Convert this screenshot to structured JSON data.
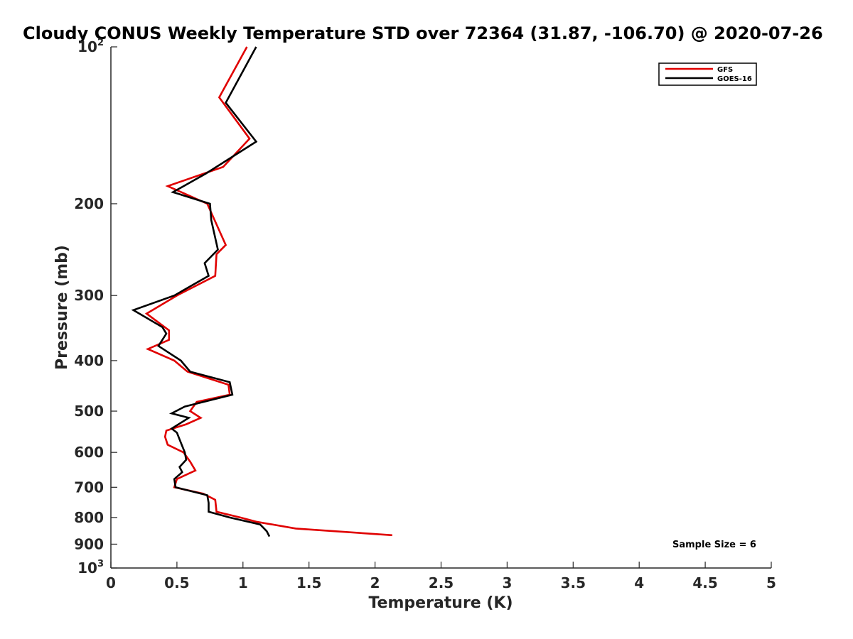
{
  "chart_data": {
    "type": "line",
    "title": "Cloudy CONUS Weekly Temperature STD over 72364 (31.87, -106.70) @ 2020-07-26",
    "xlabel": "Temperature (K)",
    "ylabel": "Pressure (mb)",
    "xlim": [
      0,
      5
    ],
    "ylim": [
      100,
      1000
    ],
    "y_scale": "log",
    "y_reversed": true,
    "x_ticks": [
      "0",
      "0.5",
      "1",
      "1.5",
      "2",
      "2.5",
      "3",
      "3.5",
      "4",
      "4.5",
      "5"
    ],
    "x_tick_values": [
      0,
      0.5,
      1,
      1.5,
      2,
      2.5,
      3,
      3.5,
      4,
      4.5,
      5
    ],
    "y_tick_values": [
      100,
      200,
      300,
      400,
      500,
      600,
      700,
      800,
      900,
      1000
    ],
    "y_tick_labels": [
      {
        "base": "10",
        "exp": "2"
      },
      {
        "base": "200",
        "exp": ""
      },
      {
        "base": "300",
        "exp": ""
      },
      {
        "base": "400",
        "exp": ""
      },
      {
        "base": "500",
        "exp": ""
      },
      {
        "base": "600",
        "exp": ""
      },
      {
        "base": "700",
        "exp": ""
      },
      {
        "base": "800",
        "exp": ""
      },
      {
        "base": "900",
        "exp": ""
      },
      {
        "base": "10",
        "exp": "3"
      }
    ],
    "grid": false,
    "legend_position": "top-right",
    "annotation": "Sample Size = 6",
    "series": [
      {
        "name": "GFS",
        "color": "#e00000",
        "points": [
          [
            1.03,
            100
          ],
          [
            0.82,
            125
          ],
          [
            1.05,
            150
          ],
          [
            0.85,
            170
          ],
          [
            0.43,
            185
          ],
          [
            0.73,
            200
          ],
          [
            0.87,
            240
          ],
          [
            0.8,
            250
          ],
          [
            0.79,
            275
          ],
          [
            0.5,
            300
          ],
          [
            0.27,
            325
          ],
          [
            0.44,
            350
          ],
          [
            0.44,
            365
          ],
          [
            0.28,
            380
          ],
          [
            0.48,
            400
          ],
          [
            0.58,
            420
          ],
          [
            0.89,
            445
          ],
          [
            0.9,
            465
          ],
          [
            0.65,
            480
          ],
          [
            0.6,
            500
          ],
          [
            0.68,
            515
          ],
          [
            0.57,
            530
          ],
          [
            0.42,
            545
          ],
          [
            0.41,
            560
          ],
          [
            0.43,
            580
          ],
          [
            0.55,
            600
          ],
          [
            0.6,
            625
          ],
          [
            0.64,
            650
          ],
          [
            0.5,
            675
          ],
          [
            0.48,
            700
          ],
          [
            0.7,
            720
          ],
          [
            0.79,
            740
          ],
          [
            0.8,
            780
          ],
          [
            0.98,
            800
          ],
          [
            1.1,
            815
          ],
          [
            1.4,
            840
          ],
          [
            2.13,
            865
          ]
        ]
      },
      {
        "name": "GOES-16",
        "color": "#000000",
        "points": [
          [
            1.1,
            100
          ],
          [
            0.87,
            128
          ],
          [
            1.1,
            152
          ],
          [
            0.72,
            175
          ],
          [
            0.47,
            190
          ],
          [
            0.75,
            200
          ],
          [
            0.76,
            215
          ],
          [
            0.81,
            245
          ],
          [
            0.71,
            260
          ],
          [
            0.74,
            275
          ],
          [
            0.48,
            300
          ],
          [
            0.17,
            320
          ],
          [
            0.39,
            345
          ],
          [
            0.42,
            355
          ],
          [
            0.36,
            375
          ],
          [
            0.53,
            400
          ],
          [
            0.6,
            420
          ],
          [
            0.9,
            440
          ],
          [
            0.92,
            465
          ],
          [
            0.56,
            490
          ],
          [
            0.46,
            505
          ],
          [
            0.59,
            515
          ],
          [
            0.46,
            540
          ],
          [
            0.5,
            550
          ],
          [
            0.53,
            575
          ],
          [
            0.56,
            600
          ],
          [
            0.57,
            620
          ],
          [
            0.52,
            640
          ],
          [
            0.54,
            655
          ],
          [
            0.48,
            675
          ],
          [
            0.49,
            700
          ],
          [
            0.73,
            725
          ],
          [
            0.74,
            750
          ],
          [
            0.74,
            780
          ],
          [
            0.9,
            800
          ],
          [
            1.13,
            825
          ],
          [
            1.18,
            850
          ],
          [
            1.2,
            870
          ]
        ]
      }
    ]
  }
}
